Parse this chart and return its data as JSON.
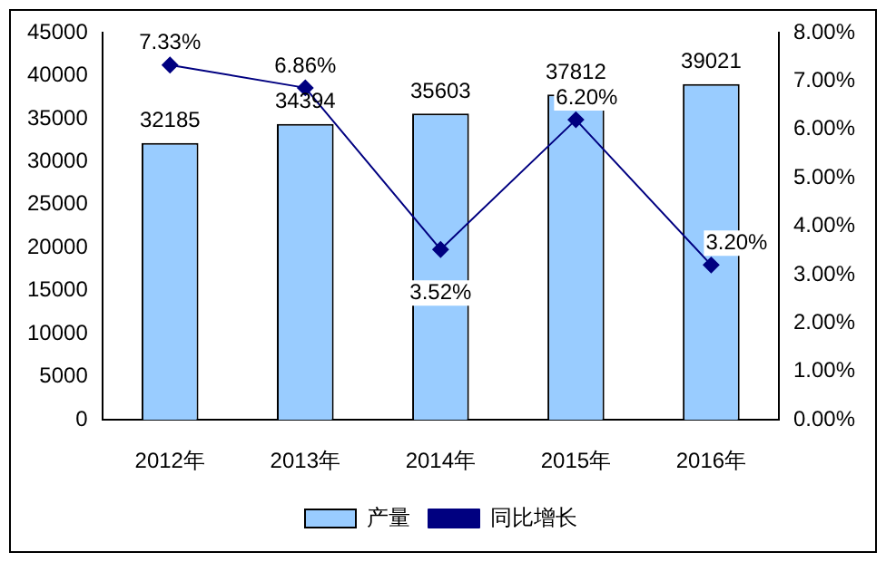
{
  "chart_data": {
    "type": "bar",
    "categories": [
      "2012年",
      "2013年",
      "2014年",
      "2015年",
      "2016年"
    ],
    "series": [
      {
        "name": "产量",
        "color": "#99ccff",
        "values": [
          32185,
          34394,
          35603,
          37812,
          39021
        ],
        "value_labels": [
          "32185",
          "34394",
          "35603",
          "37812",
          "39021"
        ]
      },
      {
        "name": "同比增长",
        "type": "line",
        "axis": "y2",
        "color": "#000080",
        "values": [
          7.33,
          6.86,
          3.52,
          6.2,
          3.2
        ],
        "value_labels": [
          "7.33%",
          "6.86%",
          "3.52%",
          "6.20%",
          "3.20%"
        ]
      }
    ],
    "ylim": [
      0,
      45000
    ],
    "yticks": [
      0,
      5000,
      10000,
      15000,
      20000,
      25000,
      30000,
      35000,
      40000,
      45000
    ],
    "y2lim": [
      0,
      8
    ],
    "y2ticks": [
      {
        "value": 0,
        "label": "0.00%"
      },
      {
        "value": 1,
        "label": "1.00%"
      },
      {
        "value": 2,
        "label": "2.00%"
      },
      {
        "value": 3,
        "label": "3.00%"
      },
      {
        "value": 4,
        "label": "4.00%"
      },
      {
        "value": 5,
        "label": "5.00%"
      },
      {
        "value": 6,
        "label": "6.00%"
      },
      {
        "value": 7,
        "label": "7.00%"
      },
      {
        "value": 8,
        "label": "8.00%"
      }
    ],
    "grid": false,
    "legend": "bottom",
    "marker": "diamond",
    "line_style": "solid"
  }
}
